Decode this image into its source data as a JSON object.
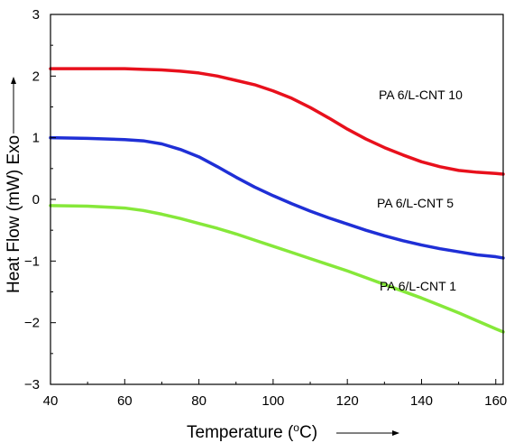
{
  "chart_data": {
    "type": "line",
    "title": "",
    "xlabel": "Temperature (°C)",
    "xlabel_parts": {
      "before": "Temperature (",
      "sup": "o",
      "after": "C)"
    },
    "ylabel": "Heat Flow (mW) Exo",
    "xlim": [
      40,
      162
    ],
    "ylim": [
      -3,
      3
    ],
    "xticks": [
      40,
      60,
      80,
      100,
      120,
      140,
      160
    ],
    "yticks": [
      -3,
      -2,
      -1,
      0,
      1,
      2,
      3
    ],
    "xtick_labels": [
      "40",
      "60",
      "80",
      "100",
      "120",
      "140",
      "160"
    ],
    "ytick_labels": [
      "−3",
      "−2",
      "−1",
      "0",
      "1",
      "2",
      "3"
    ],
    "grid": false,
    "legend": "inline labels",
    "series": [
      {
        "name": "PA 6/L-CNT 10",
        "color": "#e8101c",
        "x": [
          40,
          50,
          60,
          65,
          70,
          75,
          80,
          85,
          90,
          95,
          100,
          105,
          110,
          115,
          120,
          125,
          130,
          135,
          140,
          145,
          150,
          155,
          160,
          162
        ],
        "y": [
          2.12,
          2.12,
          2.12,
          2.11,
          2.1,
          2.08,
          2.05,
          2.0,
          1.93,
          1.86,
          1.76,
          1.64,
          1.49,
          1.32,
          1.14,
          0.98,
          0.84,
          0.72,
          0.61,
          0.53,
          0.47,
          0.44,
          0.42,
          0.41
        ]
      },
      {
        "name": "PA 6/L-CNT 5",
        "color": "#1f2fd6",
        "x": [
          40,
          50,
          60,
          65,
          70,
          75,
          80,
          85,
          90,
          95,
          100,
          105,
          110,
          115,
          120,
          125,
          130,
          135,
          140,
          145,
          150,
          155,
          160,
          162
        ],
        "y": [
          1.0,
          0.99,
          0.97,
          0.95,
          0.9,
          0.81,
          0.69,
          0.53,
          0.36,
          0.2,
          0.06,
          -0.07,
          -0.19,
          -0.3,
          -0.4,
          -0.5,
          -0.59,
          -0.67,
          -0.74,
          -0.8,
          -0.85,
          -0.9,
          -0.93,
          -0.95
        ]
      },
      {
        "name": "PA 6/L-CNT 1",
        "color": "#86e83a",
        "x": [
          40,
          50,
          60,
          65,
          70,
          75,
          80,
          85,
          90,
          95,
          100,
          105,
          110,
          115,
          120,
          125,
          130,
          135,
          140,
          145,
          150,
          155,
          160,
          162
        ],
        "y": [
          -0.1,
          -0.11,
          -0.14,
          -0.18,
          -0.24,
          -0.31,
          -0.39,
          -0.47,
          -0.56,
          -0.66,
          -0.76,
          -0.86,
          -0.96,
          -1.06,
          -1.16,
          -1.27,
          -1.38,
          -1.49,
          -1.6,
          -1.72,
          -1.84,
          -1.97,
          -2.1,
          -2.15
        ]
      }
    ]
  }
}
